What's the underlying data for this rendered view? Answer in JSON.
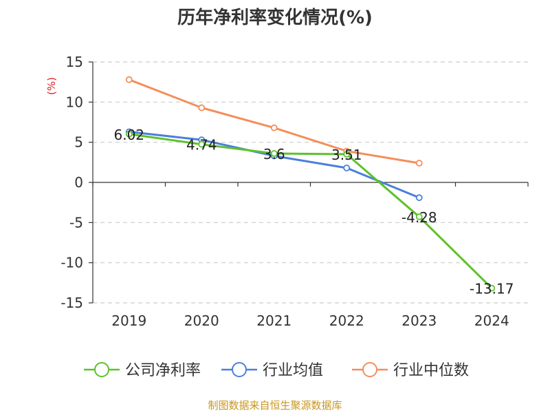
{
  "chart_data": {
    "type": "line",
    "title": "历年净利率变化情况(%)",
    "ylabel": "(%)",
    "xlabel": "",
    "categories": [
      "2019",
      "2020",
      "2021",
      "2022",
      "2023",
      "2024"
    ],
    "ylim": [
      -15,
      15
    ],
    "yticks": [
      15,
      10,
      5,
      0,
      -5,
      -10,
      -15
    ],
    "grid": true,
    "legend_position": "bottom",
    "series": [
      {
        "name": "公司净利率",
        "color": "#5cc22b",
        "values": [
          6.02,
          4.74,
          3.6,
          3.51,
          -4.28,
          -13.17
        ],
        "data_labels": [
          "6.02",
          "4.74",
          "3.6",
          "3.51",
          "-4.28",
          "-13.17"
        ]
      },
      {
        "name": "行业均值",
        "color": "#4a7fdc",
        "values": [
          6.3,
          5.3,
          3.3,
          1.8,
          -1.9,
          null
        ]
      },
      {
        "name": "行业中位数",
        "color": "#f58d5a",
        "values": [
          12.8,
          9.3,
          6.8,
          3.9,
          2.4,
          null
        ]
      }
    ]
  },
  "colors": {
    "ylabel": "#e02020",
    "source": "#c8961e",
    "axis": "#333333",
    "grid": "#cccccc"
  },
  "source_text": "制图数据来自恒生聚源数据库"
}
